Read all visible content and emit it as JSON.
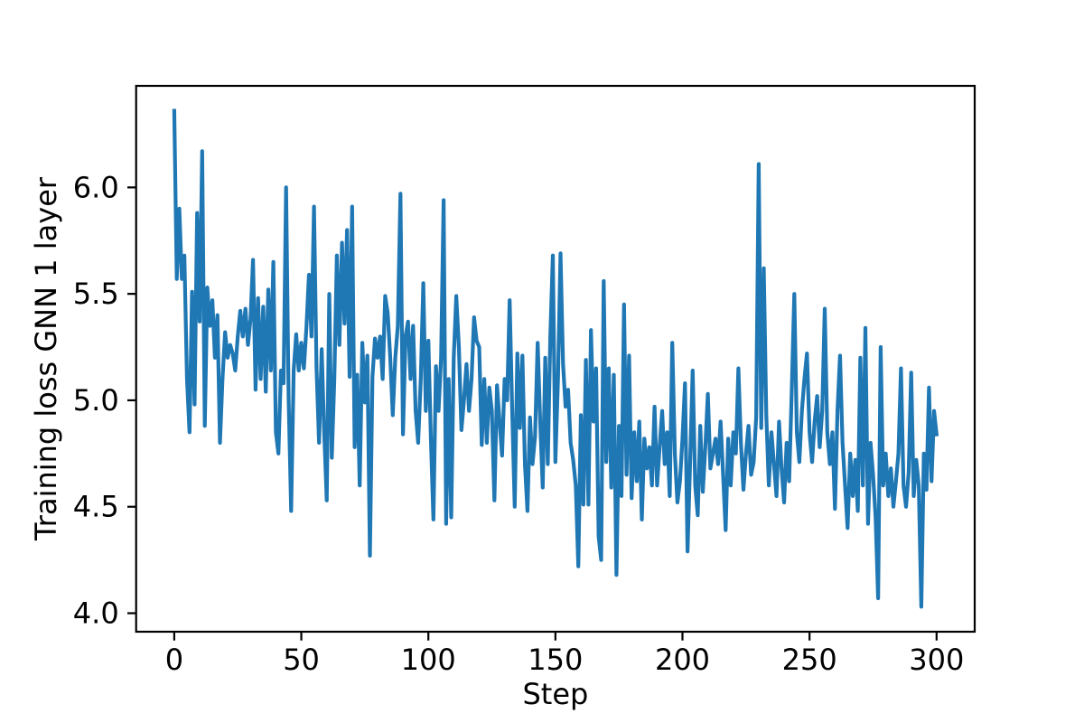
{
  "figure": {
    "background": "#ffffff",
    "frame_color": "#000000"
  },
  "chart_data": {
    "type": "line",
    "title": "",
    "xlabel": "Step",
    "ylabel": "Training loss GNN 1 layer",
    "grid": false,
    "legend": null,
    "xlim": [
      -15,
      315
    ],
    "ylim": [
      3.913,
      6.477
    ],
    "xticks": [
      0,
      50,
      100,
      150,
      200,
      250,
      300
    ],
    "yticks": [
      4.0,
      4.5,
      5.0,
      5.5,
      6.0
    ],
    "series": [
      {
        "name": "training-loss-gnn-1-layer",
        "color": "#1f77b4",
        "x_start": 0,
        "x_step": 1,
        "values": [
          6.36,
          5.57,
          5.9,
          5.57,
          5.68,
          5.1,
          4.85,
          5.51,
          4.98,
          5.88,
          5.37,
          6.17,
          4.88,
          5.53,
          5.35,
          5.47,
          5.2,
          5.4,
          4.8,
          5.1,
          5.32,
          5.2,
          5.26,
          5.22,
          5.14,
          5.3,
          5.42,
          5.3,
          5.43,
          5.26,
          5.38,
          5.66,
          5.05,
          5.48,
          5.1,
          5.44,
          5.04,
          5.52,
          5.14,
          5.65,
          4.85,
          4.75,
          5.14,
          5.08,
          6.0,
          5.01,
          4.48,
          5.14,
          5.31,
          5.14,
          5.27,
          5.15,
          5.34,
          5.59,
          5.3,
          5.91,
          5.15,
          4.8,
          5.24,
          4.85,
          4.53,
          5.5,
          4.73,
          5.1,
          5.68,
          5.26,
          5.74,
          5.36,
          5.8,
          5.11,
          5.91,
          4.78,
          5.12,
          4.6,
          5.27,
          4.99,
          5.21,
          4.27,
          5.11,
          5.29,
          5.2,
          5.3,
          5.1,
          5.49,
          5.41,
          5.2,
          4.93,
          5.2,
          5.35,
          5.97,
          4.84,
          5.3,
          5.37,
          5.1,
          5.35,
          4.95,
          4.8,
          5.1,
          5.55,
          4.95,
          5.28,
          4.82,
          4.44,
          5.16,
          4.95,
          5.2,
          5.94,
          4.42,
          5.1,
          4.45,
          5.2,
          5.49,
          5.25,
          4.86,
          5.0,
          5.17,
          4.95,
          5.1,
          5.39,
          5.28,
          5.25,
          4.79,
          5.1,
          4.8,
          5.06,
          4.95,
          4.53,
          5.07,
          4.9,
          4.74,
          5.1,
          5.0,
          5.47,
          4.95,
          4.5,
          5.22,
          4.87,
          5.21,
          4.7,
          4.48,
          4.92,
          4.7,
          4.83,
          5.27,
          4.9,
          4.59,
          5.2,
          4.7,
          5.3,
          5.68,
          4.71,
          5.1,
          5.69,
          5.17,
          4.97,
          5.05,
          4.8,
          4.72,
          4.6,
          4.22,
          4.93,
          4.51,
          5.19,
          4.51,
          5.33,
          4.9,
          5.15,
          4.36,
          4.25,
          5.56,
          4.71,
          5.15,
          4.59,
          5.12,
          4.18,
          4.88,
          4.55,
          5.45,
          4.65,
          5.21,
          4.54,
          4.85,
          4.62,
          4.9,
          4.44,
          4.82,
          4.68,
          4.78,
          4.6,
          4.97,
          4.6,
          4.78,
          4.95,
          4.7,
          4.85,
          4.55,
          5.27,
          4.75,
          4.52,
          4.62,
          4.82,
          5.08,
          4.29,
          4.7,
          5.14,
          4.6,
          4.46,
          4.88,
          4.57,
          4.78,
          5.03,
          4.68,
          4.75,
          4.82,
          4.7,
          4.9,
          4.65,
          4.39,
          4.82,
          4.6,
          4.85,
          4.75,
          5.15,
          4.8,
          4.58,
          4.75,
          4.88,
          4.65,
          4.71,
          4.92,
          6.11,
          4.87,
          5.62,
          4.93,
          4.6,
          4.85,
          4.7,
          4.55,
          4.9,
          4.68,
          4.52,
          4.8,
          4.62,
          5.05,
          5.5,
          4.85,
          4.71,
          4.95,
          5.1,
          5.22,
          4.85,
          4.71,
          4.9,
          5.02,
          4.78,
          4.95,
          5.43,
          4.85,
          4.7,
          4.85,
          4.49,
          4.95,
          5.21,
          4.8,
          4.6,
          4.4,
          4.75,
          4.55,
          4.72,
          4.48,
          5.2,
          4.6,
          5.34,
          4.42,
          4.8,
          4.65,
          4.45,
          4.07,
          5.25,
          4.6,
          4.75,
          4.55,
          4.68,
          4.5,
          4.62,
          4.75,
          5.15,
          4.6,
          4.5,
          4.66,
          5.13,
          4.55,
          4.72,
          4.6,
          4.03,
          4.75,
          4.58,
          5.06,
          4.62,
          4.95,
          4.84
        ]
      }
    ]
  }
}
